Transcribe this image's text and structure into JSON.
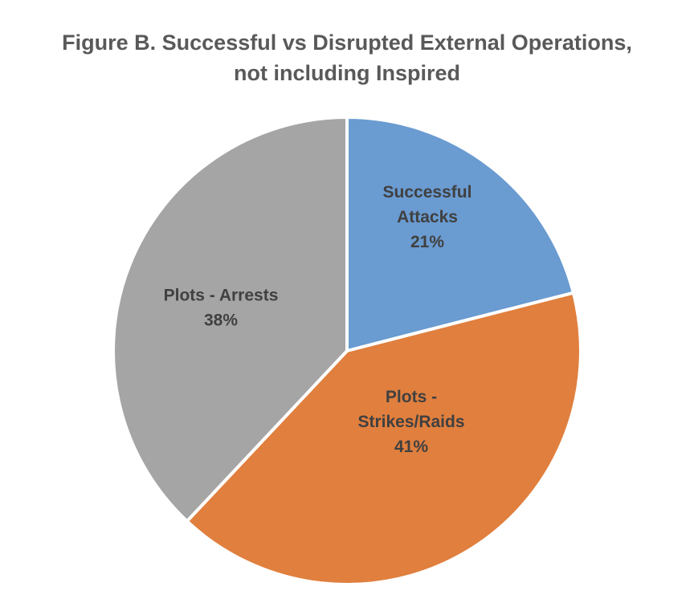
{
  "chart_data": {
    "type": "pie",
    "title": {
      "line1": "Figure B. Successful vs Disrupted External Operations,",
      "line2": "not including Inspired"
    },
    "start_angle_deg": 0,
    "direction": "clockwise",
    "slices": [
      {
        "name": "Successful Attacks",
        "value": 21,
        "label_lines": [
          "Successful",
          "Attacks",
          "21%"
        ],
        "color": "#6a9bd1"
      },
      {
        "name": "Plots - Strikes/Raids",
        "value": 41,
        "label_lines": [
          "Plots -",
          "Strikes/Raids",
          "41%"
        ],
        "color": "#e07f3e"
      },
      {
        "name": "Plots - Arrests",
        "value": 38,
        "label_lines": [
          "Plots - Arrests",
          "38%"
        ],
        "color": "#a5a5a5"
      }
    ]
  }
}
